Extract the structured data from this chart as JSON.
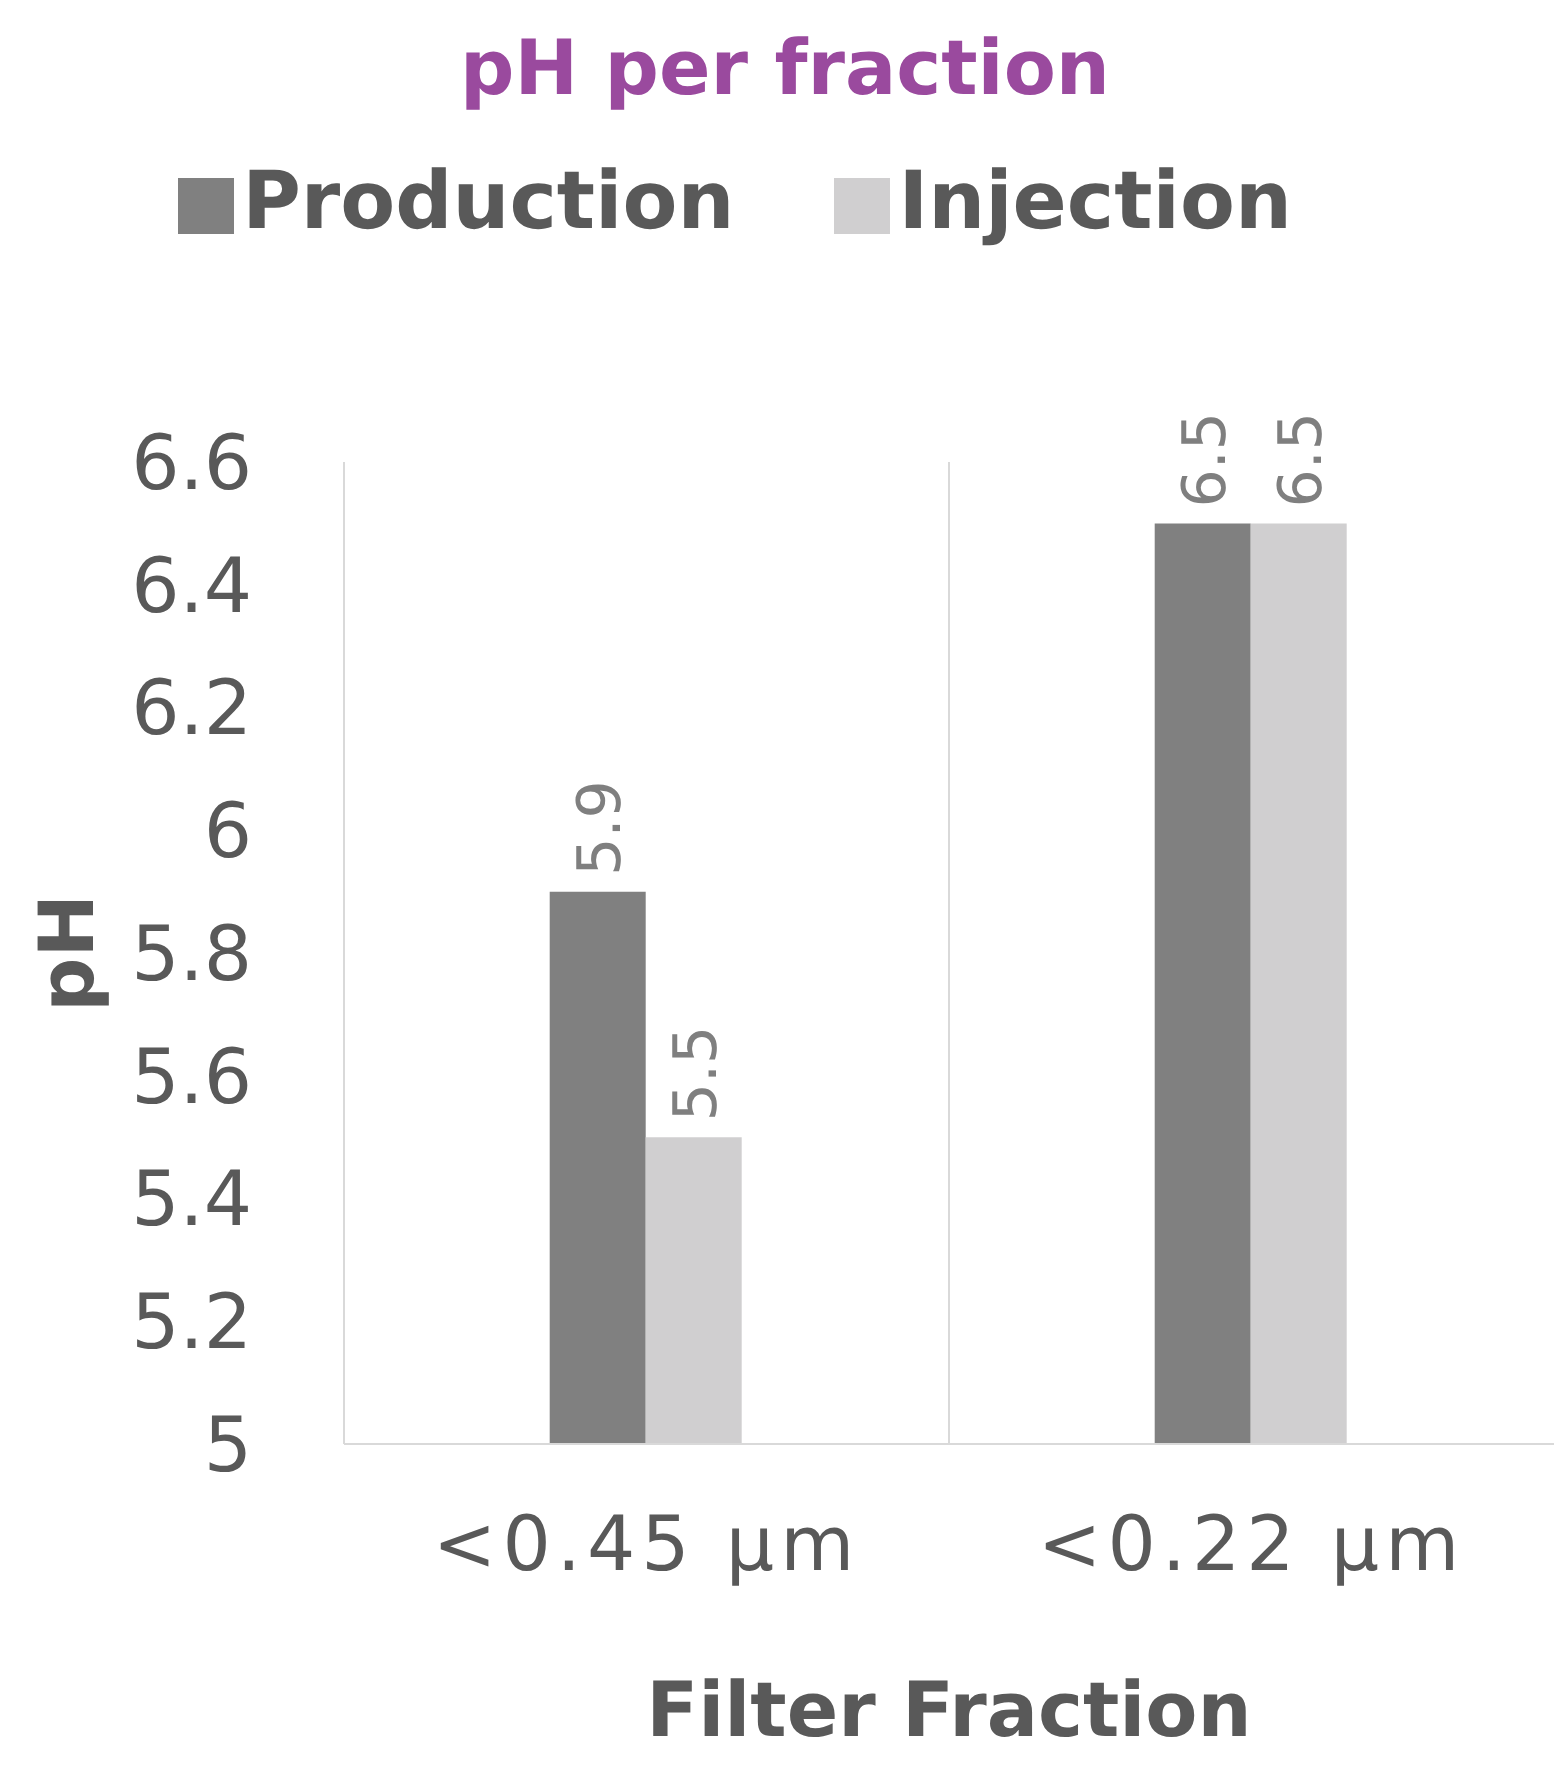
{
  "chart_data": {
    "type": "bar",
    "title": "pH per fraction",
    "xlabel": "Filter Fraction",
    "ylabel": "pH",
    "categories": [
      "<0.45 µm",
      "<0.22 µm"
    ],
    "series": [
      {
        "name": "Production",
        "color": "#808080",
        "values": [
          5.9,
          6.5
        ]
      },
      {
        "name": "Injection",
        "color": "#d0cfd0",
        "values": [
          5.5,
          6.5
        ]
      }
    ],
    "ylim": [
      5,
      6.6
    ],
    "yticks": [
      5,
      5.2,
      5.4,
      5.6,
      5.8,
      6,
      6.2,
      6.4,
      6.6
    ],
    "grid": "x",
    "legend": "top",
    "data_labels": true
  }
}
